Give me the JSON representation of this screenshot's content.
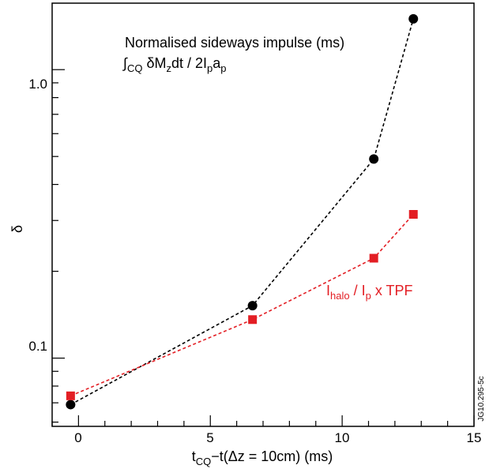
{
  "chart_data": {
    "type": "scatter",
    "xlabel": {
      "t": "t",
      "cq_sub": "CQ",
      "rest": "−t(Δz = 10cm) (ms)"
    },
    "ylabel": "δ",
    "xlim": [
      -1,
      15
    ],
    "ylim": [
      0.058,
      1.7
    ],
    "yscale": "log",
    "x_ticks": [
      0,
      5,
      10,
      15
    ],
    "x_tick_labels": [
      "0",
      "5",
      "10",
      "15"
    ],
    "y_ticks": [
      0.1,
      1.0
    ],
    "y_tick_labels": [
      "0.1",
      "1.0"
    ],
    "grid": false,
    "series": [
      {
        "marker": "circle",
        "color": "#000000",
        "x": [
          -0.3,
          6.6,
          11.2,
          12.7
        ],
        "y": [
          0.069,
          0.152,
          0.49,
          1.5
        ]
      },
      {
        "marker": "square",
        "color": "#e31e24",
        "x": [
          -0.3,
          6.6,
          11.2,
          12.7
        ],
        "y": [
          0.074,
          0.136,
          0.222,
          0.315
        ]
      }
    ],
    "annotations": {
      "black_line1": "Normalised sideways impulse (ms)",
      "black_line2": {
        "integral": "∫",
        "int_sub": "CQ",
        "p1": " δM",
        "z_sub": "z",
        "p2": "dt / 2I",
        "p_sub1": "p",
        "p3": "a",
        "p_sub2": "p"
      },
      "red_label": {
        "I": "I",
        "halo_sub": "halo",
        "mid": " / I",
        "p_sub": "p",
        "tail": " x TPF"
      },
      "side_code": "JG10.295-5c"
    }
  }
}
